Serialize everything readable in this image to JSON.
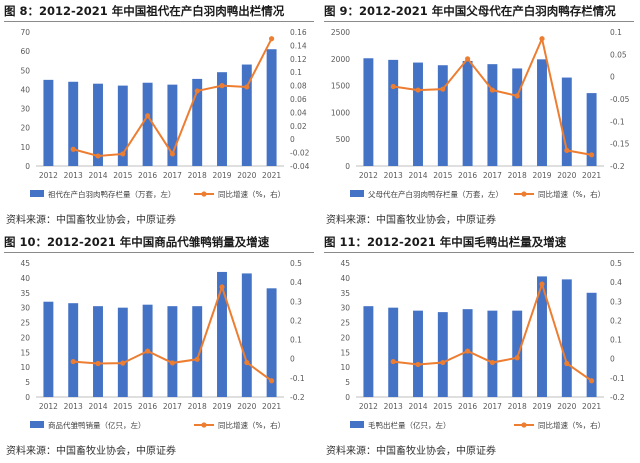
{
  "source_label": "资料来源：中国畜牧业协会，中原证券",
  "chart_data": [
    {
      "type": "bar",
      "title": "图 8：2012-2021 年中国祖代在产白羽肉鸭出栏情况",
      "categories": [
        "2012",
        "2013",
        "2014",
        "2015",
        "2016",
        "2017",
        "2018",
        "2019",
        "2020",
        "2021"
      ],
      "ylim_left": [
        0,
        70
      ],
      "yticks_left": [
        "0",
        "10",
        "20",
        "30",
        "40",
        "50",
        "60",
        "70"
      ],
      "ylim_right": [
        -0.04,
        0.16
      ],
      "yticks_right": [
        "-0.04",
        "-0.02",
        "0",
        "0.02",
        "0.04",
        "0.06",
        "0.08",
        "0.1",
        "0.12",
        "0.14",
        "0.16"
      ],
      "bar_series": {
        "name": "祖代在产白羽肉鸭存栏量（万套，左）",
        "color": "#4472c4",
        "values": [
          45,
          44,
          43,
          42,
          43.5,
          42.5,
          45.5,
          49,
          53,
          61
        ]
      },
      "line_series": {
        "name": "同比增速（%，右）",
        "color": "#ed7d31",
        "values": [
          null,
          -0.015,
          -0.025,
          -0.022,
          0.035,
          -0.022,
          0.072,
          0.08,
          0.078,
          0.15
        ]
      }
    },
    {
      "type": "bar",
      "title": "图 9：2012-2021 年中国父母代在产白羽肉鸭存栏情况",
      "categories": [
        "2012",
        "2013",
        "2014",
        "2015",
        "2016",
        "2017",
        "2018",
        "2019",
        "2020",
        "2021"
      ],
      "ylim_left": [
        0,
        2500
      ],
      "yticks_left": [
        "0",
        "500",
        "1000",
        "1500",
        "2000",
        "2500"
      ],
      "ylim_right": [
        -0.2,
        0.1
      ],
      "yticks_right": [
        "-0.2",
        "-0.15",
        "-0.1",
        "-0.05",
        "0",
        "0.05",
        "0.1"
      ],
      "bar_series": {
        "name": "父母代在产白羽肉鸭存栏量（万套，左）",
        "color": "#4472c4",
        "values": [
          2010,
          1980,
          1930,
          1880,
          1960,
          1900,
          1820,
          1990,
          1650,
          1360
        ]
      },
      "line_series": {
        "name": "同比增速（%，右）",
        "color": "#ed7d31",
        "values": [
          null,
          -0.022,
          -0.03,
          -0.028,
          0.04,
          -0.03,
          -0.043,
          0.085,
          -0.165,
          -0.175
        ]
      }
    },
    {
      "type": "bar",
      "title": "图 10：2012-2021 年中国商品代雏鸭销量及增速",
      "categories": [
        "2012",
        "2013",
        "2014",
        "2015",
        "2016",
        "2017",
        "2018",
        "2019",
        "2020",
        "2021"
      ],
      "ylim_left": [
        0,
        45
      ],
      "yticks_left": [
        "0",
        "5",
        "10",
        "15",
        "20",
        "25",
        "30",
        "35",
        "40",
        "45"
      ],
      "ylim_right": [
        -0.2,
        0.5
      ],
      "yticks_right": [
        "-0.2",
        "-0.1",
        "0",
        "0.1",
        "0.2",
        "0.3",
        "0.4",
        "0.5"
      ],
      "bar_series": {
        "name": "商品代雏鸭销量（亿只，左）",
        "color": "#4472c4",
        "values": [
          32,
          31.5,
          30.5,
          30,
          31,
          30.5,
          30.5,
          42,
          41.5,
          36.5
        ]
      },
      "line_series": {
        "name": "同比增速（%，右）",
        "color": "#ed7d31",
        "values": [
          null,
          -0.015,
          -0.025,
          -0.023,
          0.04,
          -0.022,
          -0.003,
          0.375,
          -0.02,
          -0.115
        ]
      }
    },
    {
      "type": "bar",
      "title": "图 11：2012-2021 年中国毛鸭出栏量及增速",
      "categories": [
        "2012",
        "2013",
        "2014",
        "2015",
        "2016",
        "2017",
        "2018",
        "2019",
        "2020",
        "2021"
      ],
      "ylim_left": [
        0,
        45
      ],
      "yticks_left": [
        "0",
        "5",
        "10",
        "15",
        "20",
        "25",
        "30",
        "35",
        "40",
        "45"
      ],
      "ylim_right": [
        -0.2,
        0.5
      ],
      "yticks_right": [
        "-0.2",
        "-0.1",
        "0",
        "0.1",
        "0.2",
        "0.3",
        "0.4",
        "0.5"
      ],
      "bar_series": {
        "name": "毛鸭出栏量（亿只，左）",
        "color": "#4472c4",
        "values": [
          30.5,
          30,
          29,
          28.5,
          29.5,
          29,
          29,
          40.5,
          39.5,
          35
        ]
      },
      "line_series": {
        "name": "同比增速（%，右）",
        "color": "#ed7d31",
        "values": [
          null,
          -0.015,
          -0.03,
          -0.02,
          0.04,
          -0.02,
          0.005,
          0.39,
          -0.025,
          -0.115
        ]
      }
    }
  ]
}
